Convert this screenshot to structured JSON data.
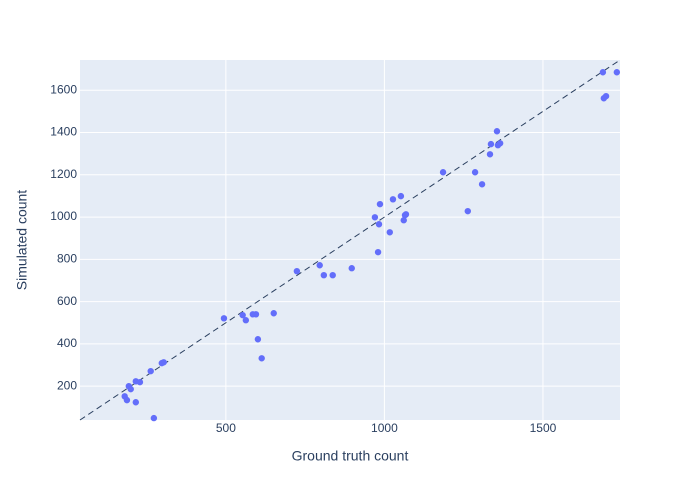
{
  "chart_data": {
    "type": "scatter",
    "x_label": "Ground truth count",
    "y_label": "Simulated count",
    "xlim": [
      40,
      1743
    ],
    "ylim": [
      40,
      1743
    ],
    "xticks": [
      500,
      1000,
      1500
    ],
    "yticks": [
      200,
      400,
      600,
      800,
      1000,
      1200,
      1400,
      1600
    ],
    "grid": true,
    "color": "#636efa",
    "identity_line": true,
    "x": [
      181,
      188,
      194,
      200,
      216,
      216,
      229,
      263,
      273,
      298,
      304,
      494,
      553,
      563,
      585,
      595,
      601,
      613,
      651,
      724,
      796,
      809,
      837,
      897,
      970,
      980,
      983,
      986,
      1017,
      1027,
      1052,
      1061,
      1065,
      1068,
      1185,
      1263,
      1286,
      1308,
      1333,
      1336,
      1355,
      1358,
      1365,
      1689,
      1692,
      1699,
      1733
    ],
    "values": [
      152,
      134,
      200,
      186,
      223,
      124,
      219,
      271,
      49,
      309,
      313,
      521,
      536,
      512,
      540,
      540,
      422,
      332,
      545,
      744,
      772,
      725,
      725,
      758,
      999,
      834,
      966,
      1061,
      928,
      1084,
      1099,
      985,
      1009,
      1013,
      1212,
      1028,
      1212,
      1155,
      1297,
      1345,
      1406,
      1340,
      1349,
      1685,
      1562,
      1572,
      1685
    ]
  }
}
